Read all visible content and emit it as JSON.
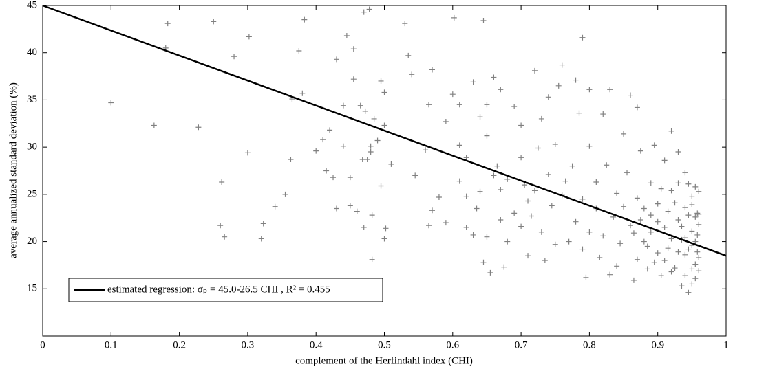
{
  "chart_data": {
    "type": "scatter",
    "xlabel": "complement of the Herfindahl index (CHI)",
    "ylabel": "average annualized standard deviation (%)",
    "xlim": [
      0,
      1
    ],
    "ylim": [
      10,
      45
    ],
    "xticks": [
      0,
      0.1,
      0.2,
      0.3,
      0.4,
      0.5,
      0.6,
      0.7,
      0.8,
      0.9,
      1
    ],
    "yticks": [
      15,
      20,
      25,
      30,
      35,
      40,
      45
    ],
    "grid": false,
    "legend": "lower left",
    "series": [
      {
        "type": "scatter",
        "marker": "+",
        "color": "#808080",
        "x": [
          0.1,
          0.163,
          0.18,
          0.183,
          0.228,
          0.25,
          0.28,
          0.3,
          0.302,
          0.262,
          0.26,
          0.266,
          0.32,
          0.323,
          0.34,
          0.355,
          0.363,
          0.365,
          0.375,
          0.38,
          0.383,
          0.4,
          0.41,
          0.415,
          0.42,
          0.425,
          0.43,
          0.43,
          0.44,
          0.44,
          0.445,
          0.45,
          0.45,
          0.455,
          0.455,
          0.46,
          0.465,
          0.468,
          0.47,
          0.47,
          0.472,
          0.475,
          0.478,
          0.48,
          0.48,
          0.482,
          0.482,
          0.485,
          0.49,
          0.495,
          0.495,
          0.5,
          0.5,
          0.5,
          0.502,
          0.51,
          0.53,
          0.535,
          0.54,
          0.545,
          0.56,
          0.565,
          0.565,
          0.57,
          0.57,
          0.58,
          0.59,
          0.59,
          0.6,
          0.602,
          0.61,
          0.61,
          0.61,
          0.62,
          0.62,
          0.63,
          0.635,
          0.64,
          0.645,
          0.645,
          0.65,
          0.65,
          0.65,
          0.655,
          0.66,
          0.665,
          0.67,
          0.67,
          0.675,
          0.68,
          0.69,
          0.7,
          0.7,
          0.705,
          0.71,
          0.715,
          0.72,
          0.725,
          0.73,
          0.735,
          0.74,
          0.745,
          0.75,
          0.755,
          0.76,
          0.765,
          0.77,
          0.775,
          0.78,
          0.785,
          0.79,
          0.79,
          0.795,
          0.8,
          0.8,
          0.8,
          0.81,
          0.815,
          0.82,
          0.825,
          0.83,
          0.83,
          0.835,
          0.84,
          0.845,
          0.85,
          0.855,
          0.86,
          0.86,
          0.865,
          0.87,
          0.87,
          0.875,
          0.88,
          0.885,
          0.89,
          0.89,
          0.895,
          0.9,
          0.9,
          0.905,
          0.91,
          0.91,
          0.915,
          0.92,
          0.92,
          0.925,
          0.93,
          0.93,
          0.935,
          0.935,
          0.94,
          0.94,
          0.94,
          0.945,
          0.945,
          0.95,
          0.95,
          0.95,
          0.955,
          0.955,
          0.955,
          0.958,
          0.958,
          0.96,
          0.96,
          0.88,
          0.885,
          0.89,
          0.895,
          0.9,
          0.905,
          0.91,
          0.915,
          0.92,
          0.92,
          0.925,
          0.93,
          0.93,
          0.935,
          0.94,
          0.94,
          0.945,
          0.945,
          0.95,
          0.95,
          0.95,
          0.955,
          0.955,
          0.958,
          0.96,
          0.96,
          0.96,
          0.87,
          0.875,
          0.865,
          0.85,
          0.84,
          0.82,
          0.81,
          0.79,
          0.78,
          0.76,
          0.75,
          0.74,
          0.73,
          0.72,
          0.71,
          0.7,
          0.69,
          0.68,
          0.67,
          0.66,
          0.64,
          0.63,
          0.62
        ],
        "values": [
          34.7,
          32.3,
          40.5,
          43.1,
          32.1,
          43.3,
          39.6,
          29.4,
          41.7,
          26.3,
          21.7,
          20.5,
          20.3,
          21.9,
          23.7,
          25,
          28.7,
          35.1,
          40.2,
          35.7,
          43.5,
          29.6,
          30.8,
          27.5,
          31.8,
          26.8,
          39.3,
          23.5,
          34.4,
          30.1,
          41.8,
          26.8,
          23.8,
          40.4,
          37.2,
          23.2,
          34.4,
          28.7,
          44.3,
          21.5,
          33.8,
          28.7,
          44.6,
          30.1,
          29.5,
          22.8,
          18.1,
          33,
          30.7,
          25.9,
          37,
          35.8,
          32.3,
          20.3,
          21.4,
          28.2,
          43.1,
          39.7,
          37.7,
          27,
          29.7,
          34.5,
          21.7,
          38.2,
          23.3,
          24.7,
          32.7,
          22,
          35.6,
          43.7,
          34.5,
          30.2,
          26.4,
          28.9,
          21.5,
          36.9,
          23.5,
          33.2,
          43.4,
          17.8,
          31.2,
          34.5,
          20.5,
          16.7,
          37.4,
          28,
          36.1,
          25.5,
          17.3,
          20,
          34.3,
          32.3,
          28.9,
          26,
          18.5,
          22.7,
          38.1,
          29.9,
          33,
          18,
          35.3,
          23.8,
          30.3,
          36.5,
          38.7,
          26.4,
          20,
          28,
          37.1,
          33.6,
          41.6,
          24.5,
          16.2,
          36.1,
          30.1,
          21,
          26.3,
          18.3,
          33.5,
          28.1,
          36.1,
          16.5,
          22.6,
          25.1,
          19.8,
          31.4,
          27.3,
          35.5,
          21.7,
          15.9,
          34.2,
          24.6,
          29.6,
          20,
          17.1,
          26.2,
          22.8,
          30.2,
          18.8,
          24,
          16.4,
          28.6,
          21.5,
          19.3,
          31.7,
          25.4,
          17.2,
          29.5,
          22.3,
          20.2,
          15.3,
          27.3,
          23.6,
          18.6,
          14.6,
          26.1,
          21.1,
          19.6,
          24.8,
          17.6,
          22.6,
          16.1,
          20.7,
          23,
          18.3,
          25.3,
          23.5,
          19.5,
          21,
          17.8,
          22.1,
          25.6,
          18,
          23.2,
          20.3,
          16.8,
          24.1,
          18.9,
          26.2,
          21.6,
          20.4,
          16.4,
          22.8,
          19.2,
          17.1,
          23.9,
          15.5,
          20,
          25.8,
          18.9,
          21.8,
          16.9,
          22.9,
          18.1,
          22.3,
          20.9,
          23.7,
          17.4,
          20.6,
          23.5,
          19.2,
          22.1,
          24.9,
          19.7,
          27.1,
          21,
          25.4,
          24.3,
          21.6,
          23,
          26.6,
          22.3,
          27,
          25.3,
          20.7,
          24.8
        ]
      },
      {
        "type": "line",
        "name": "estimated regression: σₚ = 45.0-26.5 CHI , R² = 0.455",
        "color": "#000000",
        "x": [
          0,
          1
        ],
        "values": [
          45,
          18.5
        ]
      }
    ]
  }
}
